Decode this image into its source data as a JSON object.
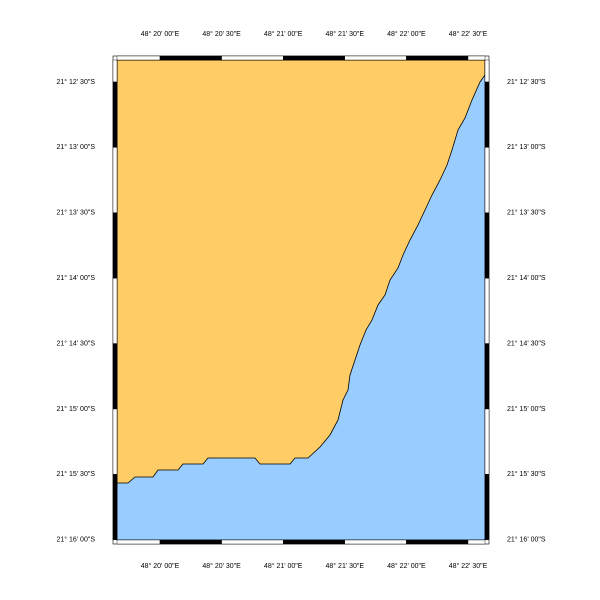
{
  "map": {
    "longitude_labels": [
      "48° 20' 00\"E",
      "48° 20' 30\"E",
      "48° 21' 00\"E",
      "48° 21' 30\"E",
      "48° 22' 00\"E",
      "48° 22' 30\"E"
    ],
    "latitude_labels": [
      "21° 12' 30\"S",
      "21° 13' 00\"S",
      "21° 13' 30\"S",
      "21° 14' 00\"S",
      "21° 14' 30\"S",
      "21° 15' 00\"S",
      "21° 15' 30\"S",
      "21° 16' 00\"S"
    ]
  }
}
